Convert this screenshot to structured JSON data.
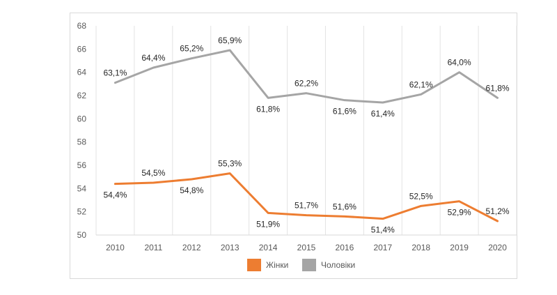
{
  "chart_data": {
    "type": "line",
    "title": "",
    "xlabel": "",
    "ylabel": "",
    "categories": [
      "2010",
      "2011",
      "2012",
      "2013",
      "2014",
      "2015",
      "2016",
      "2017",
      "2018",
      "2019",
      "2020"
    ],
    "ylim": [
      50,
      68
    ],
    "yticks": [
      50,
      52,
      54,
      56,
      58,
      60,
      62,
      64,
      66,
      68
    ],
    "grid": "vertical",
    "legend_position": "bottom",
    "series": [
      {
        "name": "Жінки",
        "color": "#ED7D31",
        "values": [
          54.4,
          54.5,
          54.8,
          55.3,
          51.9,
          51.7,
          51.6,
          51.4,
          52.5,
          52.9,
          51.2
        ],
        "labels": [
          "54,4%",
          "54,5%",
          "54,8%",
          "55,3%",
          "51,9%",
          "51,7%",
          "51,6%",
          "51,4%",
          "52,5%",
          "52,9%",
          "51,2%"
        ],
        "label_side": [
          "below",
          "above",
          "below",
          "above",
          "below",
          "above",
          "above",
          "below",
          "above",
          "below",
          "above"
        ]
      },
      {
        "name": "Чоловіки",
        "color": "#A5A5A5",
        "values": [
          63.1,
          64.4,
          65.2,
          65.9,
          61.8,
          62.2,
          61.6,
          61.4,
          62.1,
          64.0,
          61.8
        ],
        "labels": [
          "63,1%",
          "64,4%",
          "65,2%",
          "65,9%",
          "61,8%",
          "62,2%",
          "61,6%",
          "61,4%",
          "62,1%",
          "64,0%",
          "61,8%"
        ],
        "label_side": [
          "above",
          "above",
          "above",
          "above",
          "below",
          "above",
          "below",
          "below",
          "above",
          "above",
          "above"
        ]
      }
    ]
  }
}
